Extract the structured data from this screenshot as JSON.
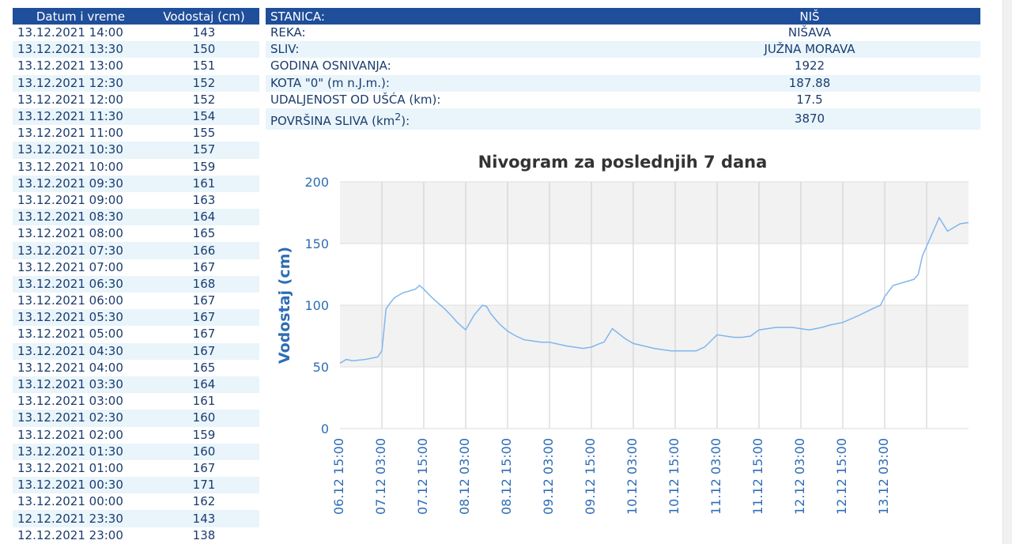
{
  "readings": {
    "headers": {
      "datetime": "Datum i vreme",
      "level": "Vodostaj (cm)"
    },
    "rows": [
      [
        "13.12.2021 14:00",
        "143"
      ],
      [
        "13.12.2021 13:30",
        "150"
      ],
      [
        "13.12.2021 13:00",
        "151"
      ],
      [
        "13.12.2021 12:30",
        "152"
      ],
      [
        "13.12.2021 12:00",
        "152"
      ],
      [
        "13.12.2021 11:30",
        "154"
      ],
      [
        "13.12.2021 11:00",
        "155"
      ],
      [
        "13.12.2021 10:30",
        "157"
      ],
      [
        "13.12.2021 10:00",
        "159"
      ],
      [
        "13.12.2021 09:30",
        "161"
      ],
      [
        "13.12.2021 09:00",
        "163"
      ],
      [
        "13.12.2021 08:30",
        "164"
      ],
      [
        "13.12.2021 08:00",
        "165"
      ],
      [
        "13.12.2021 07:30",
        "166"
      ],
      [
        "13.12.2021 07:00",
        "167"
      ],
      [
        "13.12.2021 06:30",
        "168"
      ],
      [
        "13.12.2021 06:00",
        "167"
      ],
      [
        "13.12.2021 05:30",
        "167"
      ],
      [
        "13.12.2021 05:00",
        "167"
      ],
      [
        "13.12.2021 04:30",
        "167"
      ],
      [
        "13.12.2021 04:00",
        "165"
      ],
      [
        "13.12.2021 03:30",
        "164"
      ],
      [
        "13.12.2021 03:00",
        "161"
      ],
      [
        "13.12.2021 02:30",
        "160"
      ],
      [
        "13.12.2021 02:00",
        "159"
      ],
      [
        "13.12.2021 01:30",
        "160"
      ],
      [
        "13.12.2021 01:00",
        "167"
      ],
      [
        "13.12.2021 00:30",
        "171"
      ],
      [
        "13.12.2021 00:00",
        "162"
      ],
      [
        "12.12.2021 23:30",
        "143"
      ],
      [
        "12.12.2021 23:00",
        "138"
      ]
    ]
  },
  "station": {
    "header": {
      "label": "STANICA:",
      "value": "NIŠ"
    },
    "rows": [
      {
        "label": "REKA:",
        "value": "NIŠAVA"
      },
      {
        "label": "SLIV:",
        "value": "JUŽNA MORAVA"
      },
      {
        "label": "GODINA OSNIVANJA:",
        "value": "1922"
      },
      {
        "label": "KOTA \"0\" (m n.J.m.):",
        "value": "187.88"
      },
      {
        "label": "UDALJENOST OD UŠĆA (km):",
        "value": "17.5"
      },
      {
        "label": "POVRŠINA SLIVA (km",
        "sup": "2",
        "label_end": "):",
        "value": "3870"
      }
    ]
  },
  "chart_data": {
    "type": "line",
    "title": "Nivogram za poslednjih 7 dana",
    "xlabel": "",
    "ylabel": "Vodostaj (cm)",
    "ylim": [
      0,
      200
    ],
    "yticks": [
      0,
      50,
      100,
      150,
      200
    ],
    "x_tick_labels": [
      "06.12 15:00",
      "07.12 03:00",
      "07.12 15:00",
      "08.12 03:00",
      "08.12 15:00",
      "09.12 03:00",
      "09.12 15:00",
      "10.12 03:00",
      "10.12 15:00",
      "11.12 03:00",
      "11.12 15:00",
      "12.12 03:00",
      "12.12 15:00",
      "13.12 03:00"
    ],
    "grid": true,
    "line_color": "#7fb6ee",
    "accent_color": "#2f6db5",
    "series": [
      {
        "x": [
          0,
          0.15,
          0.3,
          0.6,
          0.9,
          1.0,
          1.1,
          1.2,
          1.3,
          1.5,
          1.8,
          1.9,
          2.0,
          2.2,
          2.5,
          2.7,
          2.8,
          3.0,
          3.2,
          3.4,
          3.5,
          3.6,
          3.8,
          4.0,
          4.2,
          4.4,
          4.6,
          4.8,
          5.0,
          5.4,
          5.6,
          5.8,
          6.0,
          6.2,
          6.3,
          6.5,
          6.8,
          7.0,
          7.5,
          7.7,
          7.9,
          8.2,
          8.5,
          8.7,
          9.0,
          9.4,
          9.6,
          9.8,
          10.0,
          10.4,
          10.8,
          11.2,
          11.5,
          11.7,
          12.0,
          12.4,
          12.7,
          12.9,
          13.0,
          13.2,
          13.5,
          13.7,
          13.8,
          13.9,
          14.3,
          14.5,
          14.8,
          15.0
        ],
        "y": [
          53,
          56,
          55,
          56,
          58,
          63,
          97,
          102,
          106,
          110,
          113,
          116,
          113,
          106,
          97,
          90,
          86,
          80,
          92,
          100,
          99,
          93,
          85,
          79,
          75,
          72,
          71,
          70,
          70,
          67,
          66,
          65,
          66,
          69,
          70,
          81,
          73,
          69,
          65,
          64,
          63,
          63,
          63,
          66,
          76,
          74,
          74,
          75,
          80,
          82,
          82,
          80,
          82,
          84,
          86,
          92,
          97,
          100,
          107,
          116,
          119,
          121,
          125,
          140,
          171,
          160,
          166,
          167
        ]
      }
    ]
  }
}
